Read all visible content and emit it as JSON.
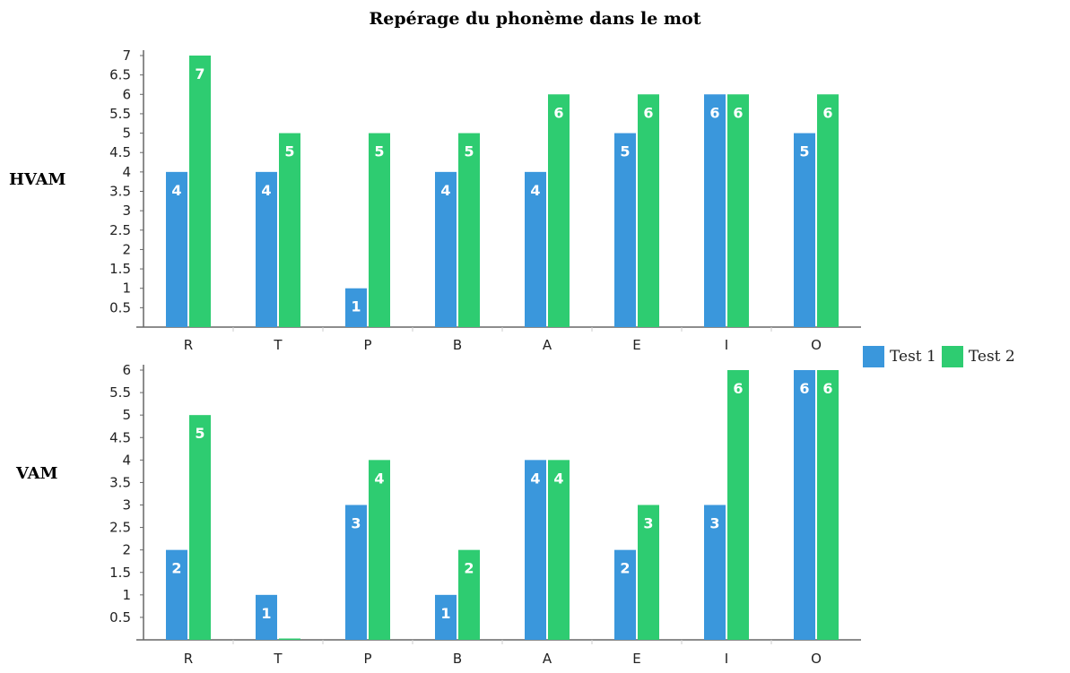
{
  "title": "Repérage du phonème dans le mot",
  "colors": {
    "test1": "#3a97dc",
    "test2": "#2ecc71",
    "axis": "#666666",
    "grid_text": "#222222"
  },
  "legend": [
    {
      "label": "Test 1",
      "color": "#3a97dc"
    },
    {
      "label": "Test 2",
      "color": "#2ecc71"
    }
  ],
  "chart_data": [
    {
      "type": "bar",
      "panel_label": "HVAM",
      "categories": [
        "R",
        "T",
        "P",
        "B",
        "A",
        "E",
        "I",
        "O"
      ],
      "series": [
        {
          "name": "Test 1",
          "values": [
            4,
            4,
            1,
            4,
            4,
            5,
            6,
            5
          ]
        },
        {
          "name": "Test 2",
          "values": [
            7,
            5,
            5,
            5,
            6,
            6,
            6,
            6
          ]
        }
      ],
      "ylim": [
        0,
        7
      ],
      "yticks": [
        0.5,
        1,
        1.5,
        2,
        2.5,
        3,
        3.5,
        4,
        4.5,
        5,
        5.5,
        6,
        6.5,
        7
      ],
      "grid": false,
      "legend_position": "right"
    },
    {
      "type": "bar",
      "panel_label": "VAM",
      "categories": [
        "R",
        "T",
        "P",
        "B",
        "A",
        "E",
        "I",
        "O"
      ],
      "series": [
        {
          "name": "Test 1",
          "values": [
            2,
            1,
            3,
            1,
            4,
            2,
            3,
            6
          ]
        },
        {
          "name": "Test 2",
          "values": [
            5,
            0,
            4,
            2,
            4,
            3,
            6,
            6
          ]
        }
      ],
      "ylim": [
        0,
        6
      ],
      "yticks": [
        0.5,
        1,
        1.5,
        2,
        2.5,
        3,
        3.5,
        4,
        4.5,
        5,
        5.5,
        6
      ],
      "grid": false,
      "legend_position": "right"
    }
  ]
}
